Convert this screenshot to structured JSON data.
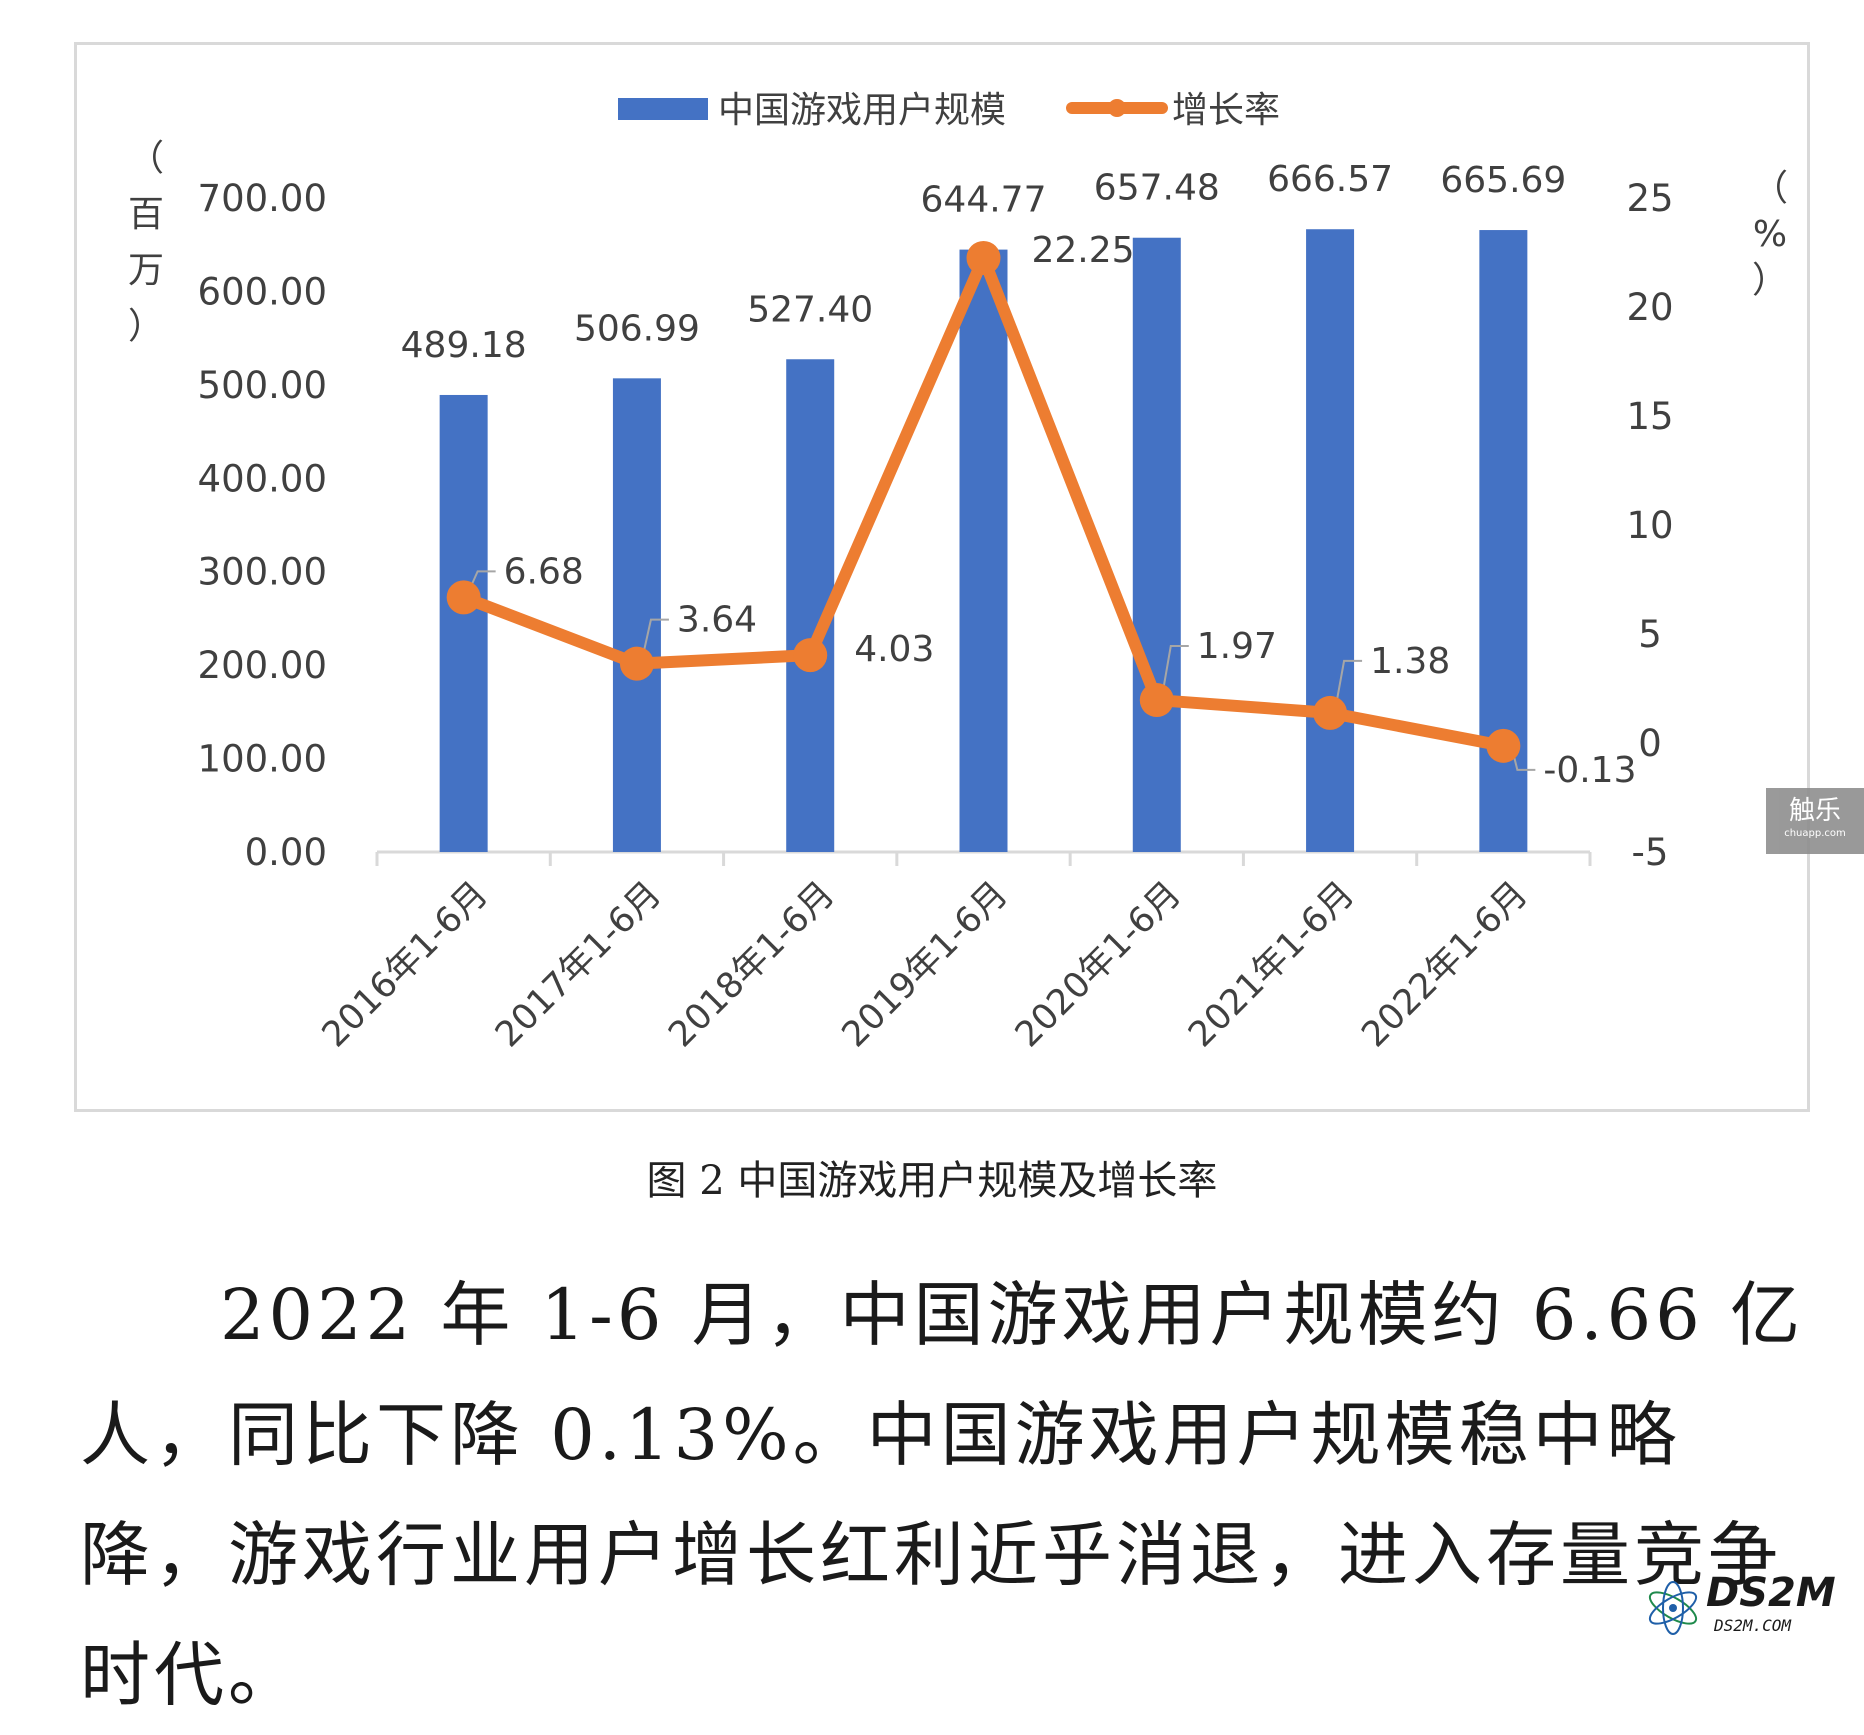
{
  "chart_data": {
    "type": "bar+line",
    "categories": [
      "2016年1-6月",
      "2017年1-6月",
      "2018年1-6月",
      "2019年1-6月",
      "2020年1-6月",
      "2021年1-6月",
      "2022年1-6月"
    ],
    "series": [
      {
        "name": "中国游戏用户规模",
        "type": "bar",
        "axis": "left",
        "values": [
          489.18,
          506.99,
          527.4,
          644.77,
          657.48,
          666.57,
          665.69
        ],
        "labels": [
          "489.18",
          "506.99",
          "527.40",
          "644.77",
          "657.48",
          "666.57",
          "665.69"
        ],
        "color": "#4472c4"
      },
      {
        "name": "增长率",
        "type": "line",
        "axis": "right",
        "values": [
          6.68,
          3.64,
          4.03,
          22.25,
          1.97,
          1.38,
          -0.13
        ],
        "labels": [
          "6.68",
          "3.64",
          "4.03",
          "22.25",
          "1.97",
          "1.38",
          "-0.13"
        ],
        "color": "#ed7d31"
      }
    ],
    "left_axis": {
      "unit_label": [
        "（",
        "百",
        "万",
        "）"
      ],
      "min": 0,
      "max": 700,
      "ticks": [
        "0.00",
        "100.00",
        "200.00",
        "300.00",
        "400.00",
        "500.00",
        "600.00",
        "700.00"
      ]
    },
    "right_axis": {
      "unit_label": [
        "（",
        "%",
        "）"
      ],
      "min": -5,
      "max": 25,
      "ticks": [
        "-5",
        "0",
        "5",
        "10",
        "15",
        "20",
        "25"
      ]
    },
    "legend_position": "top-center",
    "grid": false
  },
  "caption": "图 2 中国游戏用户规模及增长率",
  "paragraph": "2022 年 1-6 月，中国游戏用户规模约 6.66 亿人，同比下降 0.13%。中国游戏用户规模稳中略降，游戏行业用户增长红利近乎消退，进入存量竞争时代。",
  "watermarks": {
    "chule_main": "触乐",
    "chule_sub": "chuapp.com",
    "ds2m_main": "DS2M",
    "ds2m_sub": "DS2M.COM"
  }
}
